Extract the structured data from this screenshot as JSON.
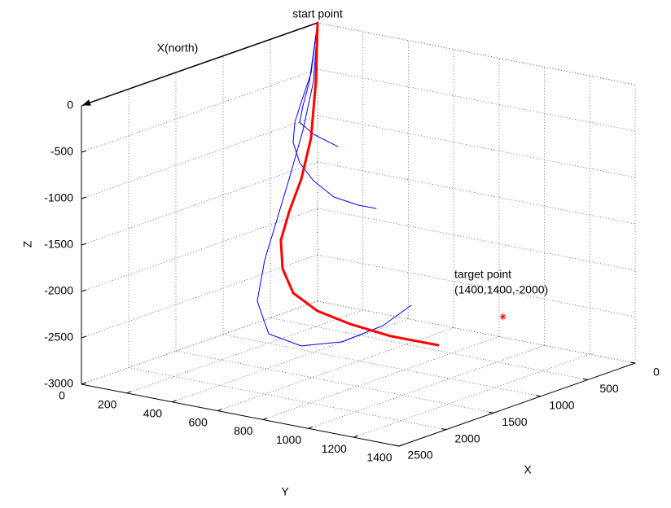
{
  "chart_data": {
    "type": "line3d",
    "x_label": "X",
    "y_label": "Y",
    "z_label": "Z",
    "xlim": [
      0,
      2500
    ],
    "ylim": [
      0,
      1400
    ],
    "zlim": [
      -3000,
      0
    ],
    "xticks": [
      0,
      500,
      1000,
      1500,
      2000,
      2500
    ],
    "yticks": [
      0,
      200,
      400,
      600,
      800,
      1000,
      1200,
      1400
    ],
    "zticks": [
      0,
      -500,
      -1000,
      -1500,
      -2000,
      -2500,
      -3000
    ],
    "grid": true,
    "series": [
      {
        "color": "#ff0000",
        "linewidth": 3,
        "x": [
          0,
          85,
          214,
          408,
          659,
          927,
          1389,
          1768,
          1987,
          2116,
          2199,
          2194
        ],
        "y": [
          0,
          28,
          60,
          98,
          149,
          224,
          424,
          629,
          827,
          1024,
          1238,
          1445
        ],
        "z": [
          0,
          -588,
          -1140,
          -1491,
          -1728,
          -1904,
          -1950,
          -1980,
          -2000,
          -2000,
          -2000,
          -2000
        ]
      },
      {
        "color": "#0000ff",
        "linewidth": 1,
        "x": [
          0,
          117,
          316,
          529,
          739,
          910,
          1052,
          1172,
          1250,
          1301
        ],
        "y": [
          0,
          20,
          60,
          120,
          200,
          300,
          420,
          560,
          700,
          800
        ],
        "z": [
          0,
          -492,
          -709,
          -824,
          -929,
          -1040,
          -1125,
          -1191,
          -1184,
          -1154
        ]
      },
      {
        "color": "#0000ff",
        "linewidth": 1,
        "x": [
          0,
          134,
          299,
          550,
          764,
          866
        ],
        "y": [
          0,
          20,
          60,
          150,
          300,
          450
        ],
        "z": [
          0,
          -574,
          -759,
          -803,
          -785,
          -810
        ]
      },
      {
        "color": "#0000ff",
        "linewidth": 1,
        "x": [
          0,
          67,
          227,
          446,
          671,
          921,
          1239,
          1478,
          1614,
          1663,
          1712,
          1771
        ],
        "y": [
          0,
          10,
          30,
          60,
          100,
          150,
          250,
          400,
          600,
          800,
          1000,
          1150
        ],
        "z": [
          0,
          -603,
          -1062,
          -1496,
          -1835,
          -2161,
          -2437,
          -2632,
          -2618,
          -2462,
          -2175,
          -1862
        ]
      }
    ],
    "target": {
      "x": 1400,
      "y": 1400,
      "z": -2000,
      "color": "#ff0000"
    },
    "annotations": [
      {
        "text": "start point"
      },
      {
        "text": "X(north)"
      },
      {
        "text": "target point"
      },
      {
        "text": "(1400,1400,-2000)"
      }
    ]
  }
}
